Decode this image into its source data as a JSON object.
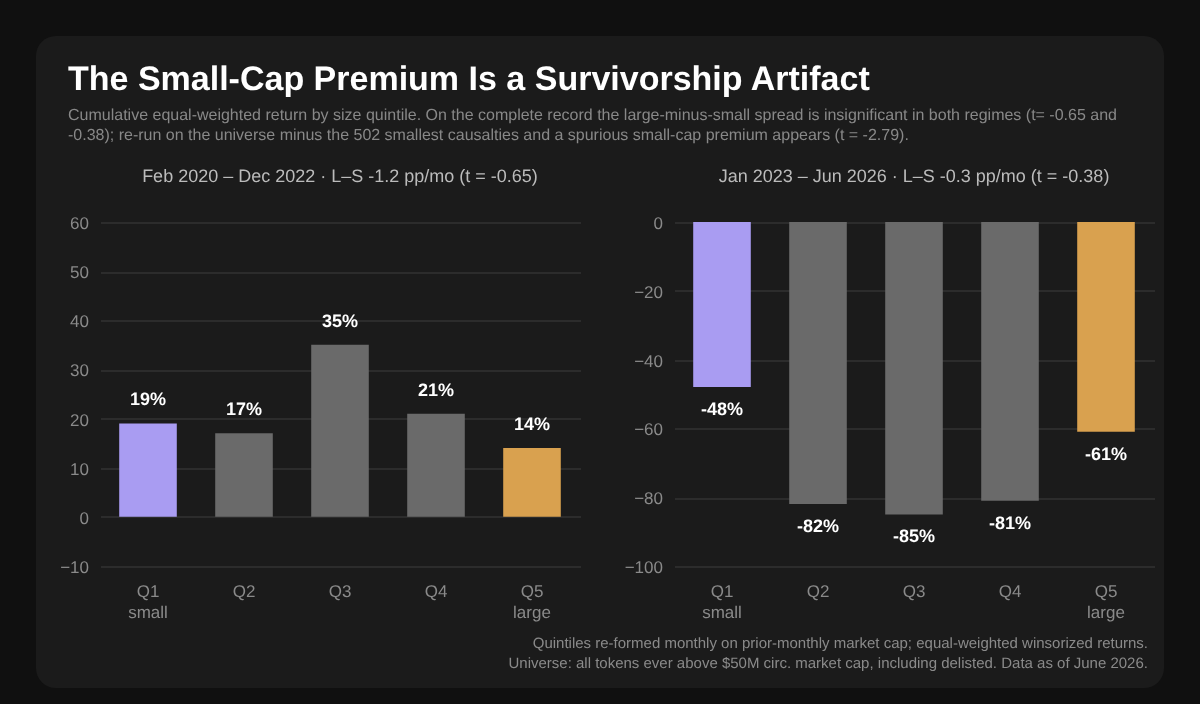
{
  "chart_data": [
    {
      "type": "other",
      "title": "The Small-Cap Premium Is a Survivorship Artifact",
      "subtitle": "Cumulative equal-weighted return by size quintile. On the complete record the large-minus-small spread is insignificant in both regimes (t= -0.65 and -0.38); re-run on the universe minus the 502 smallest causalties and a spurious small-cap premium appears (t = -2.79).",
      "annotations": [
        "Quintiles re-formed monthly on prior-monthly market cap; equal-weighted winsorized returns.",
        "Universe: all tokens ever above $50M circ. market cap, including delisted. Data as of June 2026."
      ]
    },
    {
      "type": "bar",
      "title": "Feb 2020 – Dec 2022  ·  L–S -1.2 pp/mo (t = -0.65)",
      "categories": [
        "Q1\nsmall",
        "Q2",
        "Q3",
        "Q4",
        "Q5\nlarge"
      ],
      "values": [
        19,
        17,
        35,
        21,
        14
      ],
      "value_labels": [
        "19%",
        "17%",
        "35%",
        "21%",
        "14%"
      ],
      "colors": [
        "#a99cf2",
        "#6a6a6a",
        "#6a6a6a",
        "#6a6a6a",
        "#d9a14f"
      ],
      "ylim": [
        -10,
        60
      ],
      "yticks": [
        -10,
        0,
        10,
        20,
        30,
        40,
        50,
        60
      ],
      "grid": "y"
    },
    {
      "type": "bar",
      "title": "Jan 2023 – Jun 2026  ·  L–S -0.3 pp/mo (t = -0.38)",
      "categories": [
        "Q1\nsmall",
        "Q2",
        "Q3",
        "Q4",
        "Q5\nlarge"
      ],
      "values": [
        -48,
        -82,
        -85,
        -81,
        -61
      ],
      "value_labels": [
        "-48%",
        "-82%",
        "-85%",
        "-81%",
        "-61%"
      ],
      "colors": [
        "#a99cf2",
        "#6a6a6a",
        "#6a6a6a",
        "#6a6a6a",
        "#d9a14f"
      ],
      "ylim": [
        -100,
        0
      ],
      "yticks": [
        -100,
        -80,
        -60,
        -40,
        -20,
        0
      ],
      "grid": "y"
    }
  ]
}
